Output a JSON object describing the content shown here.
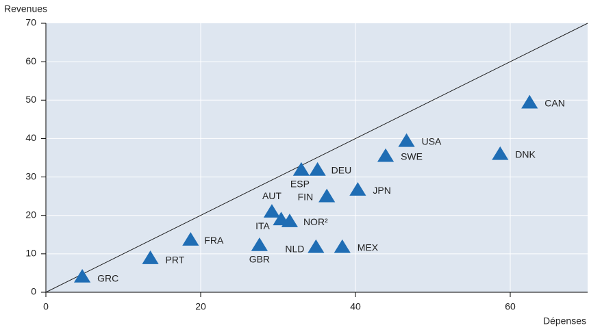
{
  "chart_data": {
    "type": "scatter",
    "ylabel": "Revenues",
    "xlabel": "Dépenses",
    "points": [
      "GRC",
      "PRT",
      "FRA",
      "GBR",
      "AUT",
      "ITA",
      "NOR²",
      "ESP",
      "DEU",
      "FIN",
      "NLD",
      "MEX",
      "JPN",
      "SWE",
      "USA",
      "DNK",
      "CAN"
    ],
    "x": [
      4.7,
      13.5,
      18.7,
      27.6,
      29.2,
      30.4,
      31.5,
      33,
      35.1,
      36.3,
      34.9,
      38.3,
      40.3,
      43.9,
      46.6,
      58.7,
      62.5
    ],
    "values": [
      4.1,
      8.9,
      13.7,
      12.3,
      21,
      19,
      18.5,
      31.9,
      31.9,
      25,
      11.8,
      11.8,
      26.7,
      35.5,
      39.4,
      36,
      49.4
    ],
    "color": "#1f6db4",
    "xlim": [
      0,
      70
    ],
    "ylim": [
      0,
      70
    ],
    "xticks": [
      0,
      20,
      40,
      60
    ],
    "yticks": [
      0,
      10,
      20,
      30,
      40,
      50,
      60,
      70
    ],
    "grid": true,
    "reference_line": "y=x"
  }
}
